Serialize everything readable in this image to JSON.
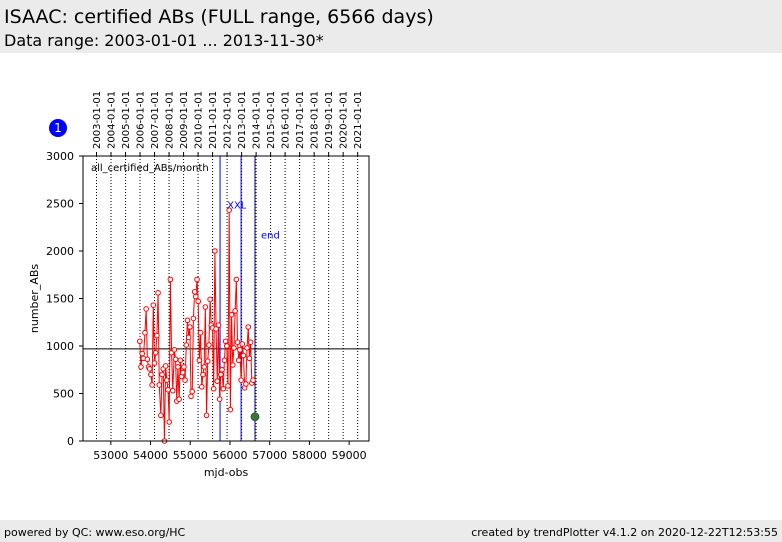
{
  "header": {
    "title": "ISAAC: certified ABs (FULL range, 6566 days)",
    "subtitle": "Data range: 2003-01-01 ... 2013-11-30*"
  },
  "footer": {
    "left": "powered by QC: www.eso.org/HC",
    "right": "created by trendPlotter v4.1.2 on 2020-12-22T12:53:55"
  },
  "badge": {
    "label": "1",
    "color": "#0000ff"
  },
  "chart_data": {
    "type": "line",
    "xlabel": "mjd-obs",
    "ylabel": "number_ABs",
    "xlim": [
      52300,
      59500
    ],
    "ylim": [
      0,
      3000
    ],
    "x_ticks": [
      53000,
      54000,
      55000,
      56000,
      57000,
      58000,
      59000
    ],
    "x_tick_labels": [
      "53000",
      "54000",
      "55000",
      "56000",
      "57000",
      "58000",
      "59000"
    ],
    "y_ticks": [
      0,
      500,
      1000,
      1500,
      2000,
      2500,
      3000
    ],
    "y_tick_labels": [
      "0",
      "500",
      "1000",
      "1500",
      "2000",
      "2500",
      "3000"
    ],
    "top_axis": {
      "values": [
        52640,
        53005,
        53371,
        53736,
        54101,
        54466,
        54832,
        55197,
        55562,
        55927,
        56293,
        56658,
        57023,
        57388,
        57754,
        58119,
        58484,
        58849,
        59215
      ],
      "labels": [
        "2003-01-01",
        "2004-01-01",
        "2005-01-01",
        "2006-01-01",
        "2007-01-01",
        "2008-01-01",
        "2009-01-01",
        "2010-01-01",
        "2011-01-01",
        "2012-01-01",
        "2013-01-01",
        "2014-01-01",
        "2015-01-01",
        "2016-01-01",
        "2017-01-01",
        "2018-01-01",
        "2019-01-01",
        "2020-01-01",
        "2021-01-01"
      ]
    },
    "series_label": "all_certified_ABs/month",
    "reference_line": 970,
    "vlines": [
      {
        "x": 55750,
        "label": "",
        "color": "#0000ff"
      },
      {
        "x": 56280,
        "label": "XXL",
        "color": "#0000ff"
      },
      {
        "x": 56630,
        "label": "end",
        "color": "#0000ff"
      }
    ],
    "series": [
      {
        "color": "#ff0000",
        "x": [
          53730,
          53760,
          53790,
          53820,
          53860,
          53890,
          53920,
          53950,
          53980,
          54010,
          54040,
          54070,
          54100,
          54130,
          54160,
          54190,
          54220,
          54260,
          54290,
          54320,
          54350,
          54380,
          54410,
          54440,
          54470,
          54500,
          54530,
          54560,
          54600,
          54630,
          54660,
          54690,
          54720,
          54750,
          54780,
          54810,
          54840,
          54870,
          54900,
          54930,
          54960,
          54990,
          55020,
          55050,
          55080,
          55110,
          55140,
          55170,
          55200,
          55230,
          55260,
          55290,
          55320,
          55350,
          55380,
          55410,
          55440,
          55470,
          55500,
          55530,
          55560,
          55590,
          55620,
          55650,
          55680,
          55710,
          55740,
          55770,
          55800,
          55830,
          55860,
          55890,
          55920,
          55950,
          55980,
          56010,
          56040,
          56070,
          56100,
          56130,
          56160,
          56190,
          56220,
          56250,
          56280,
          56310,
          56340,
          56370,
          56400,
          56430,
          56460,
          56490,
          56520,
          56550,
          56580
        ],
        "values": [
          1050,
          780,
          920,
          870,
          1140,
          1390,
          860,
          780,
          760,
          700,
          590,
          1430,
          820,
          930,
          1110,
          1560,
          590,
          270,
          700,
          760,
          0,
          790,
          640,
          540,
          200,
          1700,
          930,
          530,
          960,
          860,
          420,
          780,
          440,
          850,
          680,
          720,
          780,
          640,
          1010,
          1270,
          1090,
          1200,
          470,
          520,
          1290,
          1570,
          1520,
          1700,
          1470,
          850,
          1140,
          570,
          700,
          780,
          1410,
          270,
          840,
          1010,
          1490,
          1220,
          1190,
          550,
          2000,
          1180,
          630,
          1220,
          440,
          700,
          750,
          550,
          850,
          1050,
          1000,
          580,
          2430,
          330,
          1330,
          800,
          980,
          1370,
          1700,
          1040,
          850,
          960,
          640,
          1020,
          900,
          560,
          600,
          980,
          1200,
          870,
          1040,
          610,
          640
        ]
      }
    ],
    "markers": [
      {
        "x": 56630,
        "y": 255,
        "color": "#2e7d32"
      }
    ]
  }
}
